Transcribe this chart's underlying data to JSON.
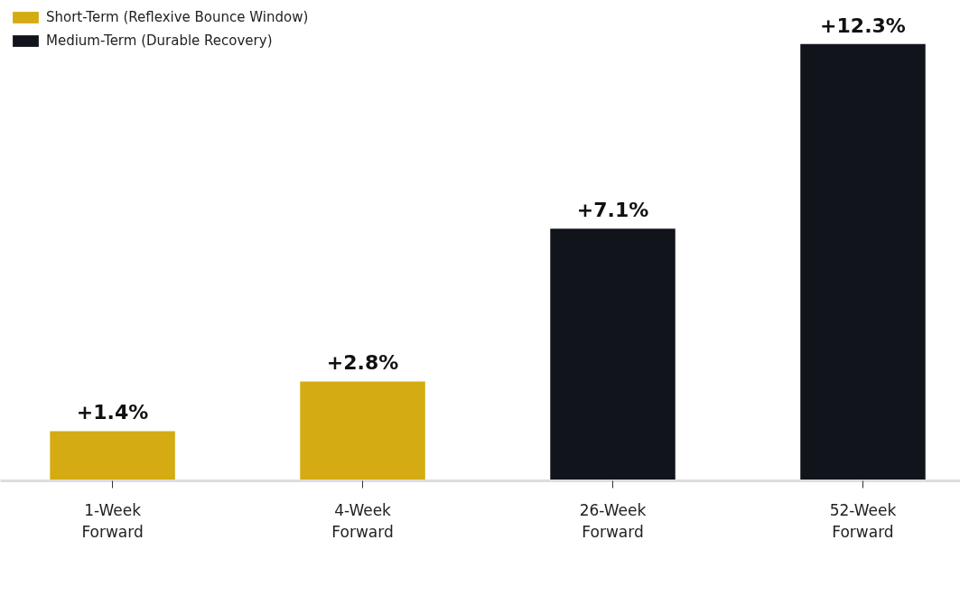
{
  "chart_data": {
    "type": "bar",
    "categories": [
      "1-Week\nForward",
      "4-Week\nForward",
      "26-Week\nForward",
      "52-Week\nForward"
    ],
    "series": [
      {
        "name": "Short-Term (Reflexive Bounce Window)",
        "color": "#d4ab12",
        "values": [
          1.4,
          2.8,
          null,
          null
        ],
        "value_labels": [
          "+1.4%",
          "+2.8%",
          null,
          null
        ]
      },
      {
        "name": "Medium-Term (Durable Recovery)",
        "color": "#12141c",
        "values": [
          null,
          null,
          7.1,
          12.3
        ],
        "value_labels": [
          null,
          null,
          "+7.1%",
          "+12.3%"
        ]
      }
    ],
    "grid": false,
    "legend": "top left",
    "tick_labels": "x"
  }
}
